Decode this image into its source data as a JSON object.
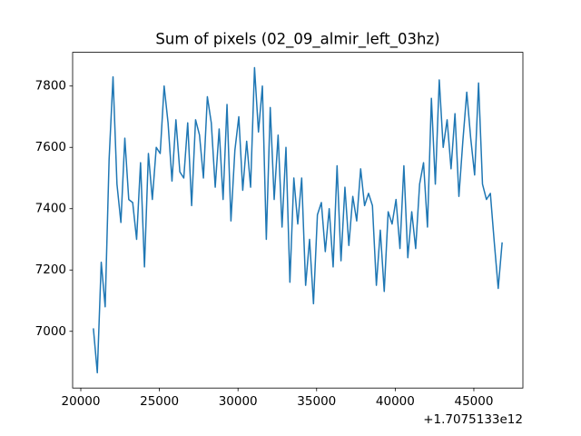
{
  "chart_data": {
    "type": "line",
    "title": "Sum of pixels (02_09_almir_left_03hz)",
    "x_offset_label": "+1.7075133e12",
    "color": "#1f77b4",
    "x": [
      20800,
      21050,
      21300,
      21550,
      21800,
      22050,
      22300,
      22550,
      22800,
      23050,
      23300,
      23550,
      23800,
      24050,
      24300,
      24550,
      24800,
      25050,
      25300,
      25550,
      25800,
      26050,
      26300,
      26550,
      26800,
      27050,
      27300,
      27550,
      27800,
      28050,
      28300,
      28550,
      28800,
      29050,
      29300,
      29550,
      29800,
      30050,
      30300,
      30550,
      30800,
      31050,
      31300,
      31550,
      31800,
      32050,
      32300,
      32550,
      32800,
      33050,
      33300,
      33550,
      33800,
      34050,
      34300,
      34550,
      34800,
      35050,
      35300,
      35550,
      35800,
      36050,
      36300,
      36550,
      36800,
      37050,
      37300,
      37550,
      37800,
      38050,
      38300,
      38550,
      38800,
      39050,
      39300,
      39550,
      39800,
      40050,
      40300,
      40550,
      40800,
      41050,
      41300,
      41550,
      41800,
      42050,
      42300,
      42550,
      42800,
      43050,
      43300,
      43550,
      43800,
      44050,
      44300,
      44550,
      44800,
      45050,
      45300,
      45550,
      45800,
      46050,
      46300,
      46550,
      46800
    ],
    "values": [
      7010,
      6865,
      7225,
      7080,
      7560,
      7830,
      7480,
      7355,
      7630,
      7430,
      7420,
      7300,
      7550,
      7210,
      7580,
      7430,
      7600,
      7580,
      7800,
      7680,
      7490,
      7690,
      7520,
      7500,
      7680,
      7410,
      7690,
      7640,
      7500,
      7765,
      7680,
      7470,
      7660,
      7430,
      7740,
      7360,
      7590,
      7700,
      7460,
      7620,
      7470,
      7860,
      7650,
      7800,
      7300,
      7730,
      7430,
      7640,
      7340,
      7600,
      7160,
      7500,
      7350,
      7500,
      7150,
      7300,
      7090,
      7380,
      7420,
      7260,
      7400,
      7210,
      7540,
      7230,
      7470,
      7280,
      7440,
      7360,
      7530,
      7410,
      7450,
      7410,
      7150,
      7330,
      7130,
      7390,
      7350,
      7430,
      7270,
      7540,
      7240,
      7390,
      7270,
      7480,
      7550,
      7340,
      7760,
      7480,
      7820,
      7600,
      7690,
      7530,
      7710,
      7440,
      7620,
      7780,
      7630,
      7510,
      7810,
      7480,
      7430,
      7450,
      7290,
      7140,
      7290
    ],
    "xlim": [
      19480,
      48120
    ],
    "ylim": [
      6815,
      7910
    ],
    "xticks": [
      20000,
      25000,
      30000,
      35000,
      40000,
      45000
    ],
    "yticks": [
      7000,
      7200,
      7400,
      7600,
      7800
    ]
  }
}
